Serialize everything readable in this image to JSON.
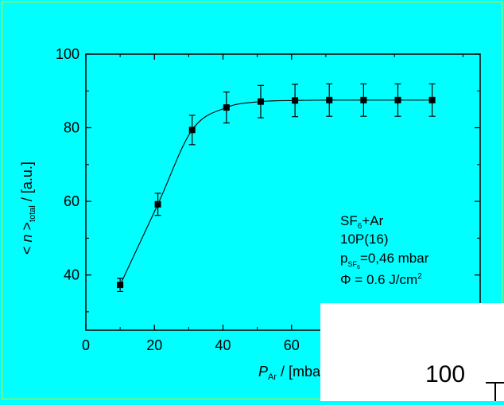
{
  "chart_data": {
    "type": "scatter",
    "xlabel": "P_Ar / [mbar]",
    "ylabel": "< n >_total / [a.u.]",
    "xlim": [
      0,
      115
    ],
    "ylim": [
      25,
      100
    ],
    "x_ticks": [
      "0",
      "20",
      "40",
      "60"
    ],
    "y_ticks": [
      "40",
      "60",
      "80",
      "100"
    ],
    "series": [
      {
        "x": [
          10,
          21,
          31,
          41,
          51,
          61,
          71,
          81,
          91,
          101
        ],
        "y": [
          37.3,
          59.2,
          79.4,
          85.5,
          87.1,
          87.4,
          87.5,
          87.5,
          87.5,
          87.5
        ],
        "yerr": [
          1.8,
          3.0,
          4.0,
          4.2,
          4.4,
          4.4,
          4.4,
          4.4,
          4.4,
          4.4
        ],
        "marker": "square",
        "fit_curve": true
      }
    ],
    "annotation": {
      "line1_main": "SF",
      "line1_sub": "6",
      "line1_tail": "+Ar",
      "line2": "10P(16)",
      "line3_main": "p",
      "line3_sub": "SF",
      "line3_subsub": "6",
      "line3_tail": "=0,46 mbar",
      "line4_main": "Φ = 0.6 J/cm",
      "line4_sup": "2"
    },
    "xlabel_parts": {
      "main": "P",
      "sub": "Ar",
      "tail": " / [mbar"
    },
    "ylabel_parts": {
      "main": "< n >",
      "sub": "total",
      "tail": " / [a.u.]"
    },
    "grid": false,
    "colors": {
      "background": "#00FFFF",
      "plot": "#000000"
    }
  },
  "overlay": {
    "tick_label": "100"
  }
}
